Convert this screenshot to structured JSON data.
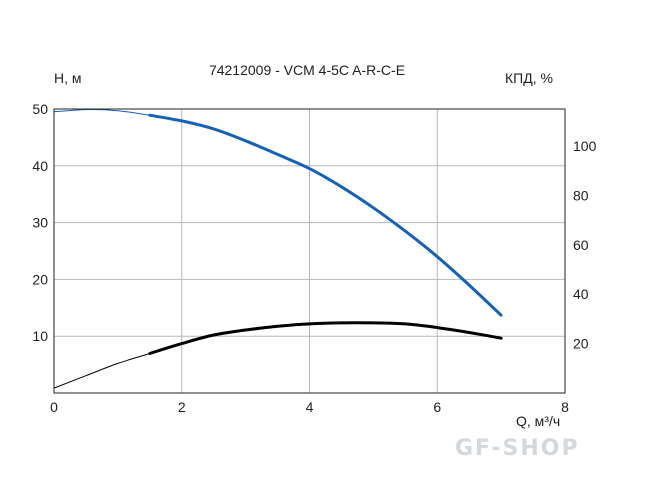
{
  "chart_data": {
    "type": "line",
    "title": "74212009 - VCM 4-5C A-R-C-E",
    "xlabel": "Q, м³/ч",
    "ylabel_left": "H, м",
    "ylabel_right": "КПД, %",
    "xlim": [
      0,
      8
    ],
    "ylim_left": [
      0,
      50
    ],
    "ylim_right": [
      0,
      115
    ],
    "x_ticks": [
      "0",
      "2",
      "4",
      "6",
      "8"
    ],
    "y_left_ticks": [
      "10",
      "20",
      "30",
      "40",
      "50"
    ],
    "y_right_ticks": [
      "20",
      "40",
      "60",
      "80",
      "100"
    ],
    "grid": true,
    "series": [
      {
        "axis": "left",
        "color": "#1560b8",
        "dashed_range": [
          0,
          1.5
        ],
        "x": [
          0,
          0.5,
          1.0,
          1.5,
          2.0,
          2.5,
          3.0,
          3.5,
          4.0,
          4.5,
          5.0,
          5.5,
          6.0,
          6.5,
          7.0
        ],
        "y": [
          49.5,
          49.9,
          49.7,
          48.9,
          47.9,
          46.5,
          44.4,
          42.0,
          39.5,
          36.3,
          32.6,
          28.5,
          24.0,
          19.0,
          13.7
        ]
      },
      {
        "axis": "right",
        "color": "#000000",
        "dashed_range": [
          0,
          1.5
        ],
        "x": [
          0,
          0.5,
          1.0,
          1.5,
          2.0,
          2.5,
          3.0,
          3.5,
          4.0,
          4.5,
          5.0,
          5.5,
          6.0,
          6.5,
          7.0
        ],
        "y": [
          2,
          7,
          12,
          16,
          20,
          23.5,
          25.5,
          27,
          28,
          28.4,
          28.4,
          28,
          26.5,
          24.5,
          22.2
        ]
      }
    ]
  },
  "watermark": "GF-SHOP"
}
